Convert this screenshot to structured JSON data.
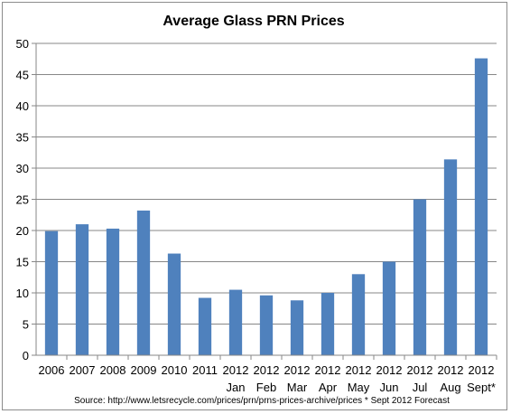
{
  "chart_data": {
    "type": "bar",
    "title": "Average Glass PRN Prices",
    "categories": [
      [
        "2006"
      ],
      [
        "2007"
      ],
      [
        "2008"
      ],
      [
        "2009"
      ],
      [
        "2010"
      ],
      [
        "2011"
      ],
      [
        "2012",
        "Jan"
      ],
      [
        "2012",
        "Feb"
      ],
      [
        "2012",
        "Mar"
      ],
      [
        "2012",
        "Apr"
      ],
      [
        "2012",
        "May"
      ],
      [
        "2012",
        "Jun"
      ],
      [
        "2012",
        "Jul"
      ],
      [
        "2012",
        "Aug"
      ],
      [
        "2012",
        "Sept*"
      ]
    ],
    "values": [
      19.9,
      21.0,
      20.3,
      23.2,
      16.3,
      9.2,
      10.5,
      9.6,
      8.8,
      10.0,
      13.0,
      15.0,
      25.0,
      31.4,
      47.6
    ],
    "ylim": [
      0,
      50
    ],
    "yticks": [
      0,
      5,
      10,
      15,
      20,
      25,
      30,
      35,
      40,
      45,
      50
    ],
    "xlabel": "",
    "ylabel": "",
    "grid": true,
    "bar_color": "#4f81bd",
    "note": "Source: http://www.letsrecycle.com/prices/prn/prns-prices-archive/prices  * Sept 2012  Forecast"
  }
}
